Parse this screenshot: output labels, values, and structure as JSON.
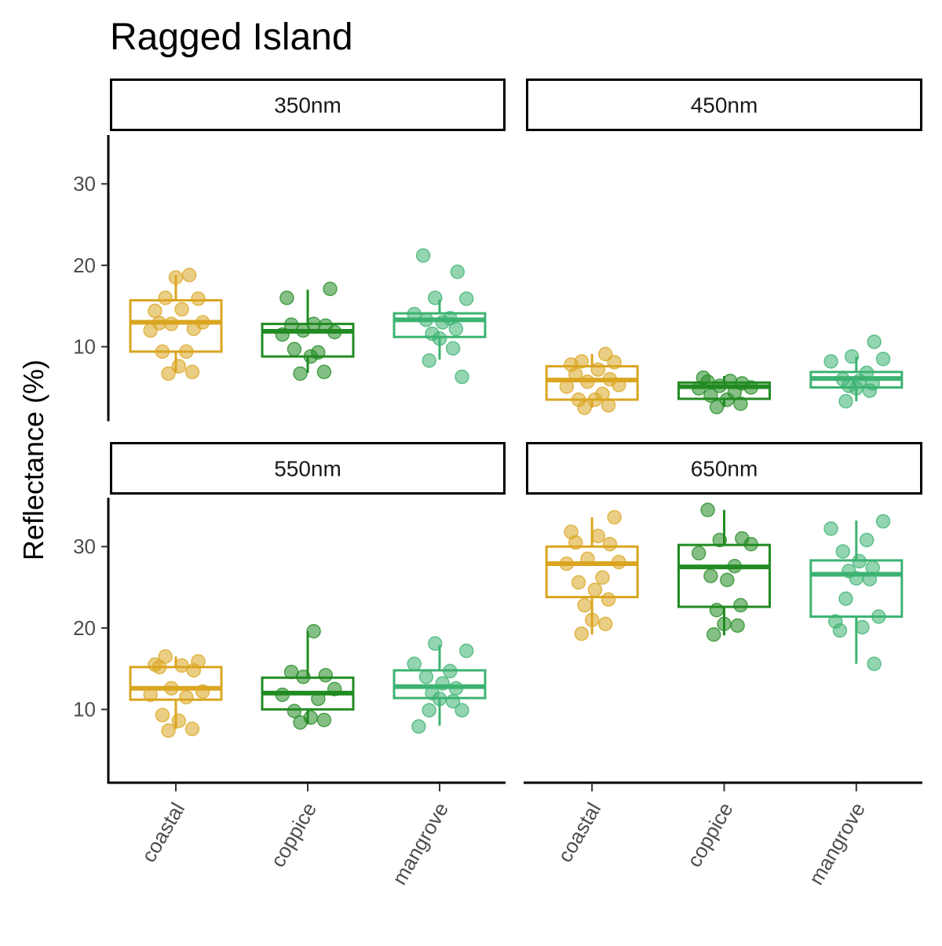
{
  "title": "Ragged Island",
  "ylabel": "Reflectance (%)",
  "xlabel": "",
  "colors": {
    "coastal": "#DAA520",
    "coppice": "#228B22",
    "mangrove": "#3CB371"
  },
  "chart_data": {
    "type": "boxplot",
    "title": "Ragged Island",
    "xlabel": "",
    "ylabel": "Reflectance (%)",
    "ylim": [
      1,
      36
    ],
    "yticks": [
      10,
      20,
      30
    ],
    "categories": [
      "coastal",
      "coppice",
      "mangrove"
    ],
    "grid": false,
    "legend": "none",
    "panels": [
      {
        "label": "350nm",
        "boxes": [
          {
            "category": "coastal",
            "q1": 9.4,
            "median": 13.0,
            "q3": 15.7,
            "whisker_low": 6.8,
            "whisker_high": 18.8
          },
          {
            "category": "coppice",
            "q1": 8.8,
            "median": 11.9,
            "q3": 12.8,
            "whisker_low": 6.8,
            "whisker_high": 17.0
          },
          {
            "category": "mangrove",
            "q1": 11.2,
            "median": 13.3,
            "q3": 14.1,
            "whisker_low": 8.4,
            "whisker_high": 15.8
          }
        ],
        "points": {
          "coastal": [
            18.5,
            18.8,
            16.0,
            15.9,
            14.4,
            14.6,
            12.9,
            12.2,
            12.8,
            13.0,
            12.0,
            9.4,
            9.4,
            7.6,
            6.9,
            6.7
          ],
          "coppice": [
            17.1,
            16.0,
            12.8,
            12.7,
            12.6,
            12.0,
            11.8,
            11.5,
            9.3,
            9.7,
            8.8,
            6.9,
            6.7
          ],
          "mangrove": [
            21.2,
            19.2,
            16.0,
            15.9,
            14.0,
            13.5,
            13.3,
            13.0,
            12.2,
            11.6,
            11.0,
            9.8,
            8.3,
            6.3
          ]
        }
      },
      {
        "label": "450nm",
        "boxes": [
          {
            "category": "coastal",
            "q1": 3.5,
            "median": 5.9,
            "q3": 7.6,
            "whisker_low": 2.5,
            "whisker_high": 9.1
          },
          {
            "category": "coppice",
            "q1": 3.6,
            "median": 5.1,
            "q3": 5.6,
            "whisker_low": 2.6,
            "whisker_high": 6.4
          },
          {
            "category": "mangrove",
            "q1": 5.0,
            "median": 6.1,
            "q3": 6.9,
            "whisker_low": 3.3,
            "whisker_high": 8.8
          }
        ],
        "points": {
          "coastal": [
            9.1,
            8.2,
            8.1,
            7.8,
            7.2,
            6.6,
            6.0,
            5.7,
            5.3,
            5.1,
            4.2,
            3.5,
            3.5,
            2.8,
            2.5
          ],
          "coppice": [
            6.2,
            5.8,
            5.7,
            5.5,
            5.2,
            5.0,
            4.9,
            4.4,
            4.0,
            3.5,
            3.0,
            2.6
          ],
          "mangrove": [
            10.6,
            8.8,
            8.5,
            8.2,
            6.8,
            6.0,
            5.8,
            5.5,
            5.2,
            4.9,
            4.6,
            3.3
          ]
        }
      },
      {
        "label": "550nm",
        "boxes": [
          {
            "category": "coastal",
            "q1": 11.2,
            "median": 12.6,
            "q3": 15.2,
            "whisker_low": 7.6,
            "whisker_high": 16.5
          },
          {
            "category": "coppice",
            "q1": 10.0,
            "median": 12.0,
            "q3": 13.9,
            "whisker_low": 8.2,
            "whisker_high": 19.6
          },
          {
            "category": "mangrove",
            "q1": 11.4,
            "median": 12.8,
            "q3": 14.8,
            "whisker_low": 8.0,
            "whisker_high": 17.9
          }
        ],
        "points": {
          "coastal": [
            16.5,
            15.9,
            15.5,
            15.4,
            15.2,
            14.8,
            12.6,
            12.2,
            11.8,
            11.5,
            9.3,
            8.6,
            7.6,
            7.4
          ],
          "coppice": [
            19.6,
            14.6,
            14.2,
            14.0,
            12.5,
            11.8,
            11.3,
            9.8,
            9.0,
            8.7,
            8.4
          ],
          "mangrove": [
            18.1,
            17.2,
            15.6,
            14.7,
            14.0,
            13.2,
            12.6,
            12.0,
            11.3,
            11.0,
            9.9,
            9.9,
            7.9
          ]
        }
      },
      {
        "label": "650nm",
        "boxes": [
          {
            "category": "coastal",
            "q1": 23.8,
            "median": 27.9,
            "q3": 30.0,
            "whisker_low": 19.2,
            "whisker_high": 33.6
          },
          {
            "category": "coppice",
            "q1": 22.6,
            "median": 27.5,
            "q3": 30.2,
            "whisker_low": 19.1,
            "whisker_high": 34.5
          },
          {
            "category": "mangrove",
            "q1": 21.4,
            "median": 26.6,
            "q3": 28.3,
            "whisker_low": 15.6,
            "whisker_high": 33.2
          }
        ],
        "points": {
          "coastal": [
            33.6,
            31.8,
            31.3,
            30.5,
            30.3,
            28.5,
            28.1,
            27.9,
            26.2,
            25.6,
            24.7,
            23.5,
            22.8,
            21.0,
            20.5,
            19.3
          ],
          "coppice": [
            34.5,
            31.0,
            30.8,
            30.3,
            29.2,
            27.6,
            26.4,
            25.9,
            22.8,
            22.2,
            20.5,
            20.3,
            19.2
          ],
          "mangrove": [
            33.1,
            32.2,
            30.8,
            29.4,
            28.2,
            27.4,
            27.0,
            26.1,
            26.0,
            23.6,
            21.4,
            20.8,
            20.1,
            19.7,
            15.6
          ]
        }
      }
    ]
  }
}
